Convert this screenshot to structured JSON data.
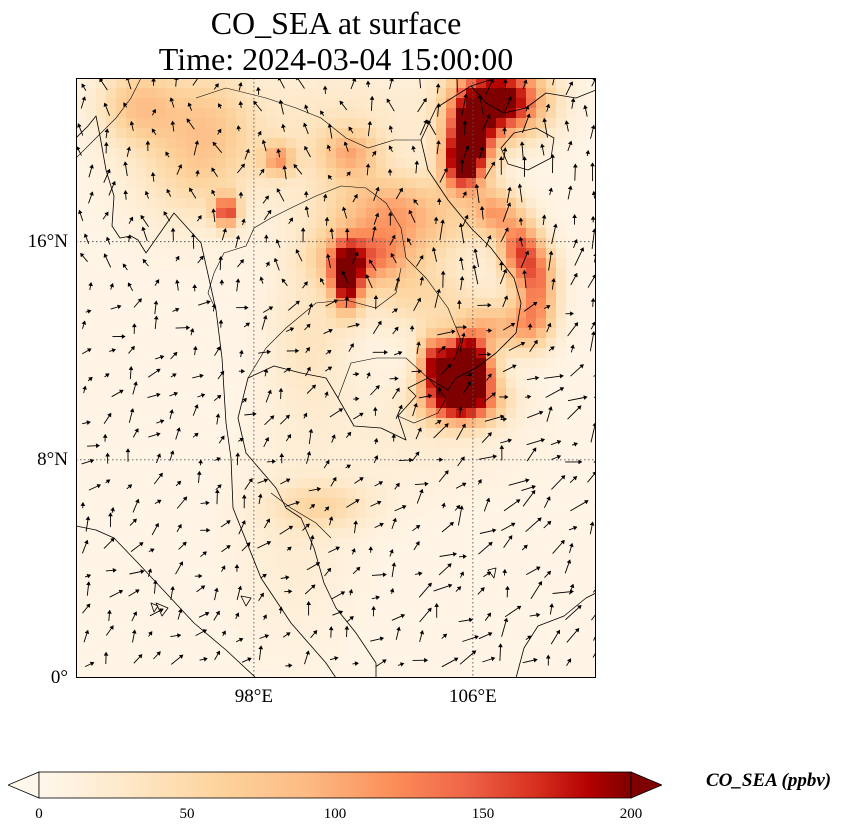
{
  "title": {
    "line1": "CO_SEA at surface",
    "line2": "Time: 2024-03-04 15:00:00"
  },
  "map": {
    "lon_range": [
      91.5,
      110.5
    ],
    "lat_range": [
      0,
      22
    ],
    "lat_ticks": [
      {
        "value": 16,
        "label": "16°N"
      },
      {
        "value": 8,
        "label": "8°N"
      },
      {
        "value": 0,
        "label": "0°"
      }
    ],
    "lon_ticks": [
      {
        "value": 98,
        "label": "98°E"
      },
      {
        "value": 106,
        "label": "106°E"
      }
    ],
    "hotspots": [
      {
        "lon": 107.0,
        "lat": 21.2,
        "sx": 1.1,
        "sy": 0.9,
        "value": 220
      },
      {
        "lon": 105.9,
        "lat": 19.8,
        "sx": 0.6,
        "sy": 1.0,
        "value": 190
      },
      {
        "lon": 105.6,
        "lat": 18.8,
        "sx": 0.5,
        "sy": 0.7,
        "value": 140
      },
      {
        "lon": 106.8,
        "lat": 17.1,
        "sx": 0.6,
        "sy": 0.6,
        "value": 90
      },
      {
        "lon": 107.7,
        "lat": 15.7,
        "sx": 0.5,
        "sy": 0.8,
        "value": 130
      },
      {
        "lon": 108.4,
        "lat": 14.6,
        "sx": 0.5,
        "sy": 0.9,
        "value": 110
      },
      {
        "lon": 108.1,
        "lat": 13.0,
        "sx": 0.6,
        "sy": 0.7,
        "value": 90
      },
      {
        "lon": 105.7,
        "lat": 11.9,
        "sx": 0.5,
        "sy": 0.5,
        "value": 170
      },
      {
        "lon": 104.6,
        "lat": 11.5,
        "sx": 0.4,
        "sy": 0.7,
        "value": 170
      },
      {
        "lon": 106.0,
        "lat": 11.2,
        "sx": 0.5,
        "sy": 0.5,
        "value": 200
      },
      {
        "lon": 105.6,
        "lat": 10.2,
        "sx": 0.9,
        "sy": 0.6,
        "value": 220
      },
      {
        "lon": 106.5,
        "lat": 12.8,
        "sx": 0.8,
        "sy": 0.6,
        "value": 80
      },
      {
        "lon": 101.4,
        "lat": 14.6,
        "sx": 0.4,
        "sy": 0.8,
        "value": 190
      },
      {
        "lon": 102.0,
        "lat": 15.4,
        "sx": 1.2,
        "sy": 0.7,
        "value": 110
      },
      {
        "lon": 103.5,
        "lat": 16.5,
        "sx": 1.8,
        "sy": 0.8,
        "value": 65
      },
      {
        "lon": 103.0,
        "lat": 17.5,
        "sx": 1.5,
        "sy": 0.7,
        "value": 55
      },
      {
        "lon": 104.2,
        "lat": 14.0,
        "sx": 1.5,
        "sy": 0.9,
        "value": 45
      },
      {
        "lon": 101.5,
        "lat": 19.2,
        "sx": 0.7,
        "sy": 0.6,
        "value": 70
      },
      {
        "lon": 98.9,
        "lat": 19.0,
        "sx": 0.4,
        "sy": 0.4,
        "value": 90
      },
      {
        "lon": 97.0,
        "lat": 17.1,
        "sx": 0.3,
        "sy": 0.4,
        "value": 150
      },
      {
        "lon": 96.3,
        "lat": 20.3,
        "sx": 1.2,
        "sy": 1.6,
        "value": 55
      },
      {
        "lon": 93.8,
        "lat": 21.0,
        "sx": 1.0,
        "sy": 1.0,
        "value": 70
      },
      {
        "lon": 95.5,
        "lat": 18.5,
        "sx": 1.5,
        "sy": 1.5,
        "value": 30
      },
      {
        "lon": 101.0,
        "lat": 19.8,
        "sx": 2.5,
        "sy": 1.8,
        "value": 30
      },
      {
        "lon": 100.5,
        "lat": 6.3,
        "sx": 1.3,
        "sy": 0.6,
        "value": 40
      },
      {
        "lon": 100.0,
        "lat": 12.5,
        "sx": 1.0,
        "sy": 2.0,
        "value": 30
      },
      {
        "lon": 99.5,
        "lat": 5.0,
        "sx": 1.5,
        "sy": 2.5,
        "value": 15
      },
      {
        "lon": 104.0,
        "lat": 9.0,
        "sx": 2.5,
        "sy": 1.5,
        "value": 15
      }
    ],
    "colors": {
      "ocean": "#fff4e6",
      "coastline": "#000000",
      "gridline": "#555555"
    }
  },
  "colorbar": {
    "min": 0,
    "max": 200,
    "ticks": [
      {
        "value": 0,
        "label": "0"
      },
      {
        "value": 50,
        "label": "50"
      },
      {
        "value": 100,
        "label": "100"
      },
      {
        "value": 150,
        "label": "150"
      },
      {
        "value": 200,
        "label": "200"
      }
    ],
    "label": "CO_SEA (ppbv)",
    "colormap": "OrRd",
    "extend": "both"
  }
}
